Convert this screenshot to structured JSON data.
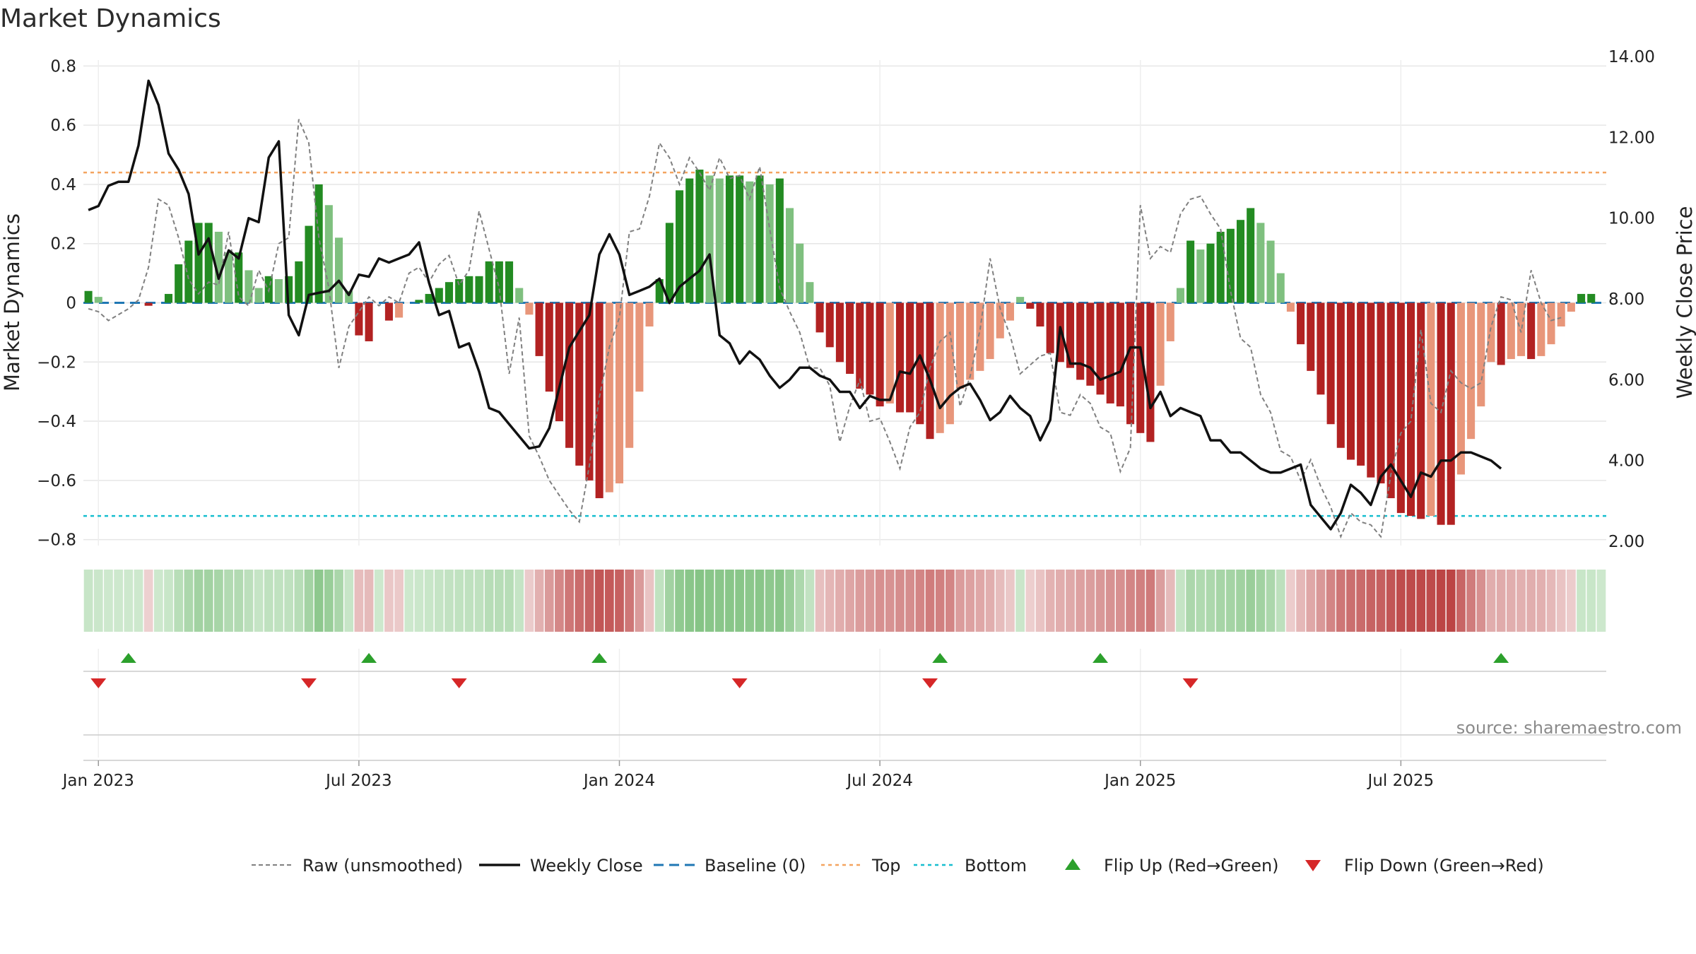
{
  "chart_data": {
    "type": "bar+line",
    "title": "Market Dynamics",
    "ylabel_left": "Market Dynamics",
    "ylabel_right": "Weekly Close Price",
    "ylim_left": [
      -0.82,
      0.82
    ],
    "ylim_right": [
      2.0,
      14.0
    ],
    "yticks_left": [
      "0.8",
      "0.6",
      "0.4",
      "0.2",
      "0",
      "−0.2",
      "−0.4",
      "−0.6",
      "−0.8"
    ],
    "yticks_left_values": [
      0.8,
      0.6,
      0.4,
      0.2,
      0,
      -0.2,
      -0.4,
      -0.6,
      -0.8
    ],
    "yticks_right": [
      "14.00",
      "12.00",
      "10.00",
      "8.00",
      "6.00",
      "4.00",
      "2.00"
    ],
    "yticks_right_values": [
      14,
      12,
      10,
      8,
      6,
      4,
      2
    ],
    "xticks": [
      "Jan 2023",
      "Jul 2023",
      "Jan 2024",
      "Jul 2024",
      "Jan 2025",
      "Jul 2025"
    ],
    "xticks_week": [
      1,
      27,
      53,
      79,
      105,
      131
    ],
    "top_level": 0.44,
    "bottom_level": -0.72,
    "baseline": 0,
    "dynamics": [
      0.04,
      0.02,
      0,
      0,
      0,
      0,
      -0.01,
      0,
      0.03,
      0.13,
      0.21,
      0.27,
      0.27,
      0.24,
      0.17,
      0.17,
      0.11,
      0.05,
      0.09,
      0.08,
      0.09,
      0.14,
      0.26,
      0.4,
      0.33,
      0.22,
      0.04,
      -0.11,
      -0.13,
      0,
      -0.06,
      -0.05,
      0,
      0.01,
      0.03,
      0.05,
      0.07,
      0.08,
      0.09,
      0.09,
      0.14,
      0.14,
      0.14,
      0.05,
      -0.04,
      -0.18,
      -0.3,
      -0.4,
      -0.49,
      -0.55,
      -0.6,
      -0.66,
      -0.64,
      -0.61,
      -0.49,
      -0.3,
      -0.08,
      0.08,
      0.27,
      0.38,
      0.42,
      0.45,
      0.43,
      0.42,
      0.43,
      0.43,
      0.41,
      0.43,
      0.4,
      0.42,
      0.32,
      0.2,
      0.07,
      -0.1,
      -0.15,
      -0.2,
      -0.24,
      -0.29,
      -0.31,
      -0.35,
      -0.34,
      -0.37,
      -0.37,
      -0.41,
      -0.46,
      -0.44,
      -0.41,
      -0.29,
      -0.26,
      -0.23,
      -0.19,
      -0.12,
      -0.06,
      0.02,
      -0.02,
      -0.08,
      -0.17,
      -0.2,
      -0.22,
      -0.26,
      -0.28,
      -0.31,
      -0.34,
      -0.35,
      -0.41,
      -0.44,
      -0.47,
      -0.28,
      -0.13,
      0.05,
      0.21,
      0.18,
      0.2,
      0.24,
      0.25,
      0.28,
      0.32,
      0.27,
      0.21,
      0.1,
      -0.03,
      -0.14,
      -0.23,
      -0.31,
      -0.41,
      -0.49,
      -0.53,
      -0.55,
      -0.59,
      -0.61,
      -0.66,
      -0.71,
      -0.72,
      -0.73,
      -0.72,
      -0.75,
      -0.75,
      -0.58,
      -0.46,
      -0.35,
      -0.2,
      -0.21,
      -0.19,
      -0.18,
      -0.19,
      -0.18,
      -0.14,
      -0.08,
      -0.03,
      0.03,
      0.03,
      0
    ],
    "raw": [
      -0.02,
      -0.03,
      -0.06,
      -0.04,
      -0.02,
      0.01,
      0.12,
      0.35,
      0.33,
      0.22,
      0.08,
      0.03,
      0.07,
      0.06,
      0.24,
      0.02,
      -0.01,
      0.11,
      0.04,
      0.2,
      0.22,
      0.62,
      0.54,
      0.22,
      0.05,
      -0.22,
      -0.08,
      -0.03,
      0.02,
      -0.01,
      0.02,
      0.0,
      0.1,
      0.12,
      0.07,
      0.13,
      0.16,
      0.06,
      0.11,
      0.31,
      0.18,
      0.05,
      -0.24,
      -0.05,
      -0.45,
      -0.52,
      -0.6,
      -0.65,
      -0.7,
      -0.74,
      -0.55,
      -0.32,
      -0.15,
      -0.05,
      0.24,
      0.25,
      0.36,
      0.54,
      0.49,
      0.4,
      0.49,
      0.44,
      0.38,
      0.49,
      0.42,
      0.43,
      0.35,
      0.46,
      0.25,
      0.05,
      -0.03,
      -0.1,
      -0.22,
      -0.22,
      -0.28,
      -0.47,
      -0.35,
      -0.26,
      -0.4,
      -0.39,
      -0.47,
      -0.56,
      -0.42,
      -0.37,
      -0.22,
      -0.13,
      -0.1,
      -0.35,
      -0.25,
      -0.09,
      0.15,
      -0.02,
      -0.11,
      -0.24,
      -0.21,
      -0.18,
      -0.17,
      -0.37,
      -0.38,
      -0.31,
      -0.34,
      -0.42,
      -0.44,
      -0.57,
      -0.49,
      0.33,
      0.15,
      0.19,
      0.17,
      0.3,
      0.35,
      0.36,
      0.3,
      0.25,
      0.04,
      -0.12,
      -0.15,
      -0.31,
      -0.37,
      -0.5,
      -0.52,
      -0.6,
      -0.53,
      -0.62,
      -0.69,
      -0.79,
      -0.71,
      -0.74,
      -0.75,
      -0.79,
      -0.58,
      -0.44,
      -0.4,
      -0.09,
      -0.34,
      -0.37,
      -0.23,
      -0.27,
      -0.29,
      -0.27,
      -0.08,
      0.02,
      0.01,
      -0.1,
      0.11,
      0.0,
      -0.06,
      -0.05
    ],
    "close": [
      10.2,
      10.3,
      10.8,
      10.9,
      10.9,
      11.8,
      13.4,
      12.8,
      11.6,
      11.2,
      10.6,
      9.1,
      9.5,
      8.5,
      9.2,
      9.0,
      10.0,
      9.9,
      11.5,
      11.9,
      7.6,
      7.1,
      8.1,
      8.15,
      8.2,
      8.45,
      8.1,
      8.6,
      8.55,
      9.0,
      8.9,
      9.0,
      9.1,
      9.4,
      8.4,
      7.6,
      7.7,
      6.8,
      6.9,
      6.2,
      5.3,
      5.2,
      4.9,
      4.6,
      4.3,
      4.35,
      4.8,
      5.8,
      6.8,
      7.2,
      7.6,
      9.1,
      9.6,
      9.1,
      8.1,
      8.2,
      8.3,
      8.5,
      7.9,
      8.3,
      8.5,
      8.7,
      9.1,
      7.1,
      6.9,
      6.4,
      6.7,
      6.5,
      6.1,
      5.8,
      6.0,
      6.3,
      6.3,
      6.1,
      6.0,
      5.7,
      5.7,
      5.3,
      5.6,
      5.5,
      5.5,
      6.2,
      6.15,
      6.6,
      6.0,
      5.3,
      5.6,
      5.8,
      5.9,
      5.5,
      5.0,
      5.2,
      5.6,
      5.3,
      5.1,
      4.5,
      5.0,
      7.3,
      6.4,
      6.4,
      6.3,
      6.0,
      6.1,
      6.2,
      6.8,
      6.8,
      5.3,
      5.7,
      5.1,
      5.3,
      5.2,
      5.1,
      4.5,
      4.5,
      4.2,
      4.2,
      4.0,
      3.8,
      3.7,
      3.7,
      3.8,
      3.9,
      2.9,
      2.6,
      2.3,
      2.7,
      3.4,
      3.2,
      2.9,
      3.6,
      3.9,
      3.5,
      3.1,
      3.7,
      3.6,
      4.0,
      4.0,
      4.2,
      4.2,
      4.1,
      4.0,
      3.8
    ],
    "flip_up_weeks": [
      4,
      28,
      51,
      85,
      101,
      141
    ],
    "flip_down_weeks": [
      1,
      22,
      37,
      65,
      84,
      110
    ],
    "source": "source: sharemaestro.com",
    "legend": [
      {
        "label": "Raw (unsmoothed)",
        "style": "dashed-gray"
      },
      {
        "label": "Weekly Close",
        "style": "solid-black"
      },
      {
        "label": "Baseline (0)",
        "style": "dashed-blue"
      },
      {
        "label": "Top",
        "style": "dotted-orange"
      },
      {
        "label": "Bottom",
        "style": "dotted-cyan"
      },
      {
        "label": "Flip Up (Red→Green)",
        "style": "triangle-up-green"
      },
      {
        "label": "Flip Down (Green→Red)",
        "style": "triangle-down-red"
      }
    ],
    "colors": {
      "strong_green": "#238b22",
      "weak_green": "#7fc07f",
      "strong_red": "#b22222",
      "weak_red": "#e8967a",
      "close_line": "#111111",
      "raw_line": "#808080",
      "baseline": "#1f77b4",
      "top": "#f4a460",
      "bottom": "#17becf",
      "flip_up": "#2ca02c",
      "flip_down": "#d62728"
    }
  }
}
